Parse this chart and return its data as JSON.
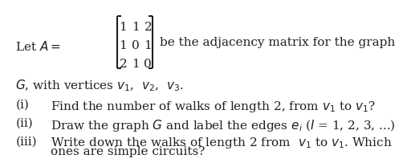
{
  "bg_color": "#ffffff",
  "text_color": "#231f20",
  "matrix_rows": [
    [
      "1",
      "1",
      "2"
    ],
    [
      "1",
      "0",
      "1"
    ],
    [
      "2",
      "1",
      "0"
    ]
  ],
  "line2": "$G$, with vertices $v_1$,  $v_2$,  $v_3$.",
  "items": [
    [
      "(i)",
      "Find the number of walks of length 2, from $v_1$ to $v_1$?"
    ],
    [
      "(ii)",
      "Draw the graph $G$ and label the edges $e_i$ ($I$ = 1, 2, 3, ...)"
    ],
    [
      "(iii)",
      "Write down the walks of length 2 from  $v_1$ to $v_1$. Which",
      "ones are simple circuits?"
    ]
  ],
  "font_size": 11.0,
  "fig_width": 4.43,
  "fig_height": 2.45
}
